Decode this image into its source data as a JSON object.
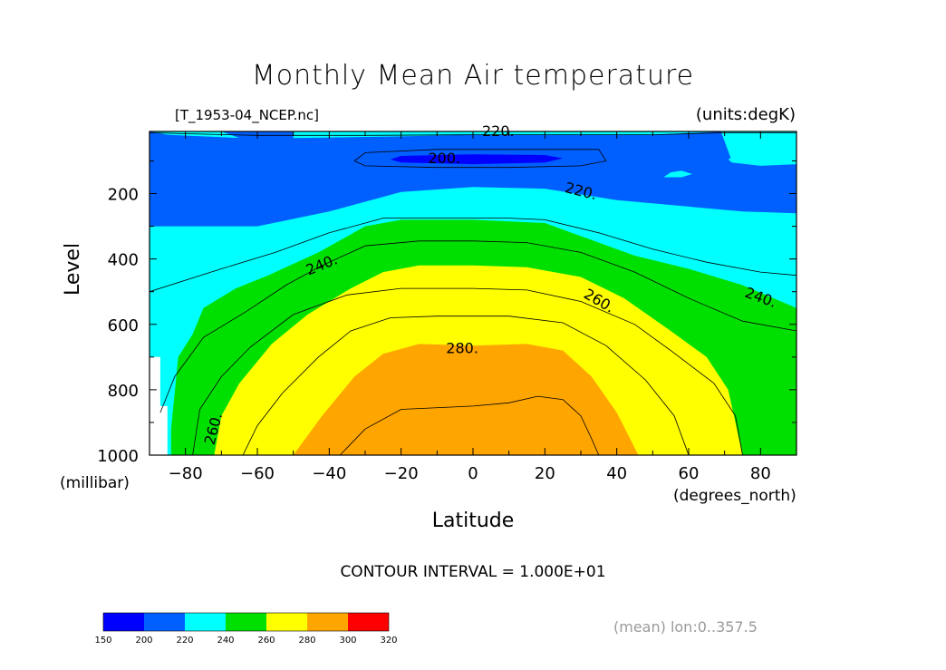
{
  "title": "Monthly Mean Air temperature",
  "file_label": "[T_1953-04_NCEP.nc]",
  "units_label": "(units:degK)",
  "contour_interval": "CONTOUR INTERVAL = 1.000E+01",
  "mean_note": "(mean) lon:0..357.5",
  "chart_data": {
    "type": "contour",
    "title": "Monthly Mean Air temperature",
    "xlabel": "Latitude",
    "ylabel": "Level",
    "x_units": "(degrees_north)",
    "y_units": "(millibar)",
    "xlim": [
      -90,
      90
    ],
    "ylim": [
      1000,
      10
    ],
    "x_ticks": [
      -80,
      -60,
      -40,
      -20,
      0,
      20,
      40,
      60,
      80
    ],
    "x_tick_labels": [
      "−80",
      "−60",
      "−40",
      "−20",
      "0",
      "20",
      "40",
      "60",
      "80"
    ],
    "y_ticks": [
      200,
      400,
      600,
      800,
      1000
    ],
    "contour_labels": [
      "220.",
      "200.",
      "220.",
      "240.",
      "260.",
      "240.",
      "280.",
      "260."
    ],
    "colorbar": {
      "ticks": [
        150,
        200,
        220,
        240,
        260,
        280,
        300,
        320
      ],
      "colors": [
        "#0000ff",
        "#0060ff",
        "#00ffff",
        "#00e000",
        "#ffff00",
        "#ffa500",
        "#ff0000"
      ]
    },
    "regions": [
      {
        "level": "220-240",
        "color": "#00ffff",
        "points": [
          [
            -90,
            10
          ],
          [
            -90,
            700
          ],
          [
            -87,
            700
          ],
          [
            -87,
            600
          ],
          [
            -85,
            600
          ],
          [
            -84,
            980
          ],
          [
            -82,
            995
          ],
          [
            -80,
            500
          ],
          [
            -60,
            450
          ],
          [
            -50,
            380
          ],
          [
            -40,
            290
          ],
          [
            -20,
            265
          ],
          [
            0,
            265
          ],
          [
            20,
            270
          ],
          [
            35,
            310
          ],
          [
            55,
            390
          ],
          [
            70,
            440
          ],
          [
            90,
            470
          ],
          [
            90,
            40
          ],
          [
            82,
            60
          ],
          [
            72,
            100
          ],
          [
            66,
            10
          ]
        ]
      },
      {
        "level": "200-220",
        "color": "#0060ff",
        "points": [
          [
            -90,
            10
          ],
          [
            -90,
            300
          ],
          [
            -60,
            300
          ],
          [
            -40,
            255
          ],
          [
            -20,
            195
          ],
          [
            0,
            180
          ],
          [
            20,
            185
          ],
          [
            40,
            220
          ],
          [
            60,
            240
          ],
          [
            75,
            255
          ],
          [
            90,
            260
          ],
          [
            90,
            110
          ],
          [
            80,
            110
          ],
          [
            72,
            100
          ],
          [
            69,
            10
          ]
        ]
      },
      {
        "level": "220-240 patch",
        "color": "#00ffff",
        "points": [
          [
            -90,
            10
          ],
          [
            -85,
            20
          ],
          [
            -65,
            30
          ],
          [
            -70,
            10
          ]
        ]
      },
      {
        "level": "220-240 patch",
        "color": "#00ffff",
        "points": [
          [
            -50,
            30
          ],
          [
            -20,
            25
          ],
          [
            0,
            20
          ],
          [
            20,
            20
          ],
          [
            50,
            20
          ],
          [
            70,
            10
          ],
          [
            -50,
            10
          ]
        ]
      },
      {
        "level": "220-240 patch",
        "color": "#00ffff",
        "points": [
          [
            53,
            150
          ],
          [
            55,
            135
          ],
          [
            58,
            130
          ],
          [
            61,
            140
          ],
          [
            58,
            150
          ]
        ]
      },
      {
        "level": "220-240 patch",
        "color": "#00ffff",
        "points": [
          [
            71,
            95
          ],
          [
            73,
            85
          ],
          [
            80,
            95
          ],
          [
            90,
            70
          ],
          [
            90,
            110
          ],
          [
            80,
            115
          ],
          [
            72,
            105
          ]
        ]
      },
      {
        "level": "190-200",
        "color": "#0000ff",
        "points": [
          [
            -23,
            95
          ],
          [
            -20,
            85
          ],
          [
            0,
            80
          ],
          [
            20,
            82
          ],
          [
            25,
            92
          ],
          [
            20,
            105
          ],
          [
            0,
            110
          ],
          [
            -20,
            105
          ]
        ]
      },
      {
        "level": "240-260",
        "color": "#00e000",
        "points": [
          [
            -84,
            1000
          ],
          [
            -84,
            920
          ],
          [
            -82,
            700
          ],
          [
            -78,
            630
          ],
          [
            -75,
            550
          ],
          [
            -66,
            490
          ],
          [
            -57,
            450
          ],
          [
            -43,
            380
          ],
          [
            -30,
            300
          ],
          [
            -20,
            280
          ],
          [
            0,
            280
          ],
          [
            20,
            290
          ],
          [
            30,
            330
          ],
          [
            45,
            390
          ],
          [
            60,
            430
          ],
          [
            75,
            480
          ],
          [
            90,
            550
          ],
          [
            90,
            1000
          ]
        ]
      },
      {
        "level": "260-280",
        "color": "#ffff00",
        "points": [
          [
            -72,
            1000
          ],
          [
            -70,
            880
          ],
          [
            -65,
            780
          ],
          [
            -56,
            660
          ],
          [
            -46,
            570
          ],
          [
            -34,
            490
          ],
          [
            -25,
            440
          ],
          [
            -15,
            420
          ],
          [
            0,
            420
          ],
          [
            15,
            425
          ],
          [
            30,
            455
          ],
          [
            42,
            520
          ],
          [
            55,
            620
          ],
          [
            65,
            700
          ],
          [
            71,
            800
          ],
          [
            73,
            900
          ],
          [
            75,
            1000
          ]
        ]
      },
      {
        "level": "280-300",
        "color": "#ffa500",
        "points": [
          [
            -50,
            1000
          ],
          [
            -42,
            880
          ],
          [
            -33,
            760
          ],
          [
            -25,
            690
          ],
          [
            -15,
            660
          ],
          [
            0,
            665
          ],
          [
            15,
            660
          ],
          [
            25,
            680
          ],
          [
            33,
            760
          ],
          [
            40,
            870
          ],
          [
            46,
            1000
          ]
        ]
      },
      {
        "level": "white",
        "color": "#ffffff",
        "points": [
          [
            -90,
            700
          ],
          [
            -87,
            700
          ],
          [
            -87,
            850
          ],
          [
            -85,
            850
          ],
          [
            -85,
            1000
          ],
          [
            -90,
            1000
          ]
        ]
      }
    ],
    "contour_lines": [
      [
        [
          -90,
          14
        ],
        [
          -80,
          17
        ],
        [
          -60,
          22
        ],
        [
          -30,
          22
        ],
        [
          0,
          20
        ],
        [
          20,
          20
        ],
        [
          50,
          20
        ],
        [
          70,
          14
        ],
        [
          90,
          14
        ]
      ],
      [
        [
          -33,
          100
        ],
        [
          -30,
          75
        ],
        [
          -10,
          65
        ],
        [
          10,
          65
        ],
        [
          35,
          65
        ],
        [
          37,
          100
        ],
        [
          30,
          115
        ],
        [
          10,
          120
        ],
        [
          -10,
          120
        ],
        [
          -30,
          115
        ],
        [
          -33,
          100
        ]
      ],
      [
        [
          -90,
          500
        ],
        [
          -70,
          430
        ],
        [
          -55,
          380
        ],
        [
          -40,
          320
        ],
        [
          -25,
          275
        ],
        [
          -10,
          275
        ],
        [
          10,
          275
        ],
        [
          20,
          280
        ],
        [
          35,
          320
        ],
        [
          50,
          370
        ],
        [
          65,
          410
        ],
        [
          80,
          440
        ],
        [
          90,
          450
        ]
      ],
      [
        [
          -87,
          870
        ],
        [
          -83,
          760
        ],
        [
          -75,
          640
        ],
        [
          -63,
          560
        ],
        [
          -52,
          480
        ],
        [
          -42,
          420
        ],
        [
          -30,
          360
        ],
        [
          -15,
          345
        ],
        [
          0,
          345
        ],
        [
          15,
          350
        ],
        [
          30,
          380
        ],
        [
          45,
          440
        ],
        [
          60,
          520
        ],
        [
          75,
          590
        ],
        [
          90,
          620
        ]
      ],
      [
        [
          -78,
          1000
        ],
        [
          -76,
          860
        ],
        [
          -70,
          760
        ],
        [
          -62,
          670
        ],
        [
          -50,
          570
        ],
        [
          -35,
          510
        ],
        [
          -20,
          490
        ],
        [
          0,
          490
        ],
        [
          15,
          495
        ],
        [
          30,
          530
        ],
        [
          45,
          600
        ],
        [
          55,
          680
        ],
        [
          67,
          780
        ],
        [
          73,
          880
        ],
        [
          75,
          1000
        ]
      ],
      [
        [
          -64,
          1000
        ],
        [
          -60,
          910
        ],
        [
          -53,
          810
        ],
        [
          -43,
          700
        ],
        [
          -34,
          620
        ],
        [
          -23,
          580
        ],
        [
          -10,
          575
        ],
        [
          10,
          575
        ],
        [
          25,
          595
        ],
        [
          37,
          665
        ],
        [
          48,
          770
        ],
        [
          56,
          880
        ],
        [
          60,
          1000
        ]
      ],
      [
        [
          -37,
          1000
        ],
        [
          -30,
          920
        ],
        [
          -20,
          860
        ],
        [
          0,
          850
        ],
        [
          10,
          840
        ],
        [
          18,
          820
        ],
        [
          25,
          830
        ],
        [
          30,
          880
        ],
        [
          33,
          950
        ],
        [
          35,
          1000
        ]
      ]
    ]
  }
}
